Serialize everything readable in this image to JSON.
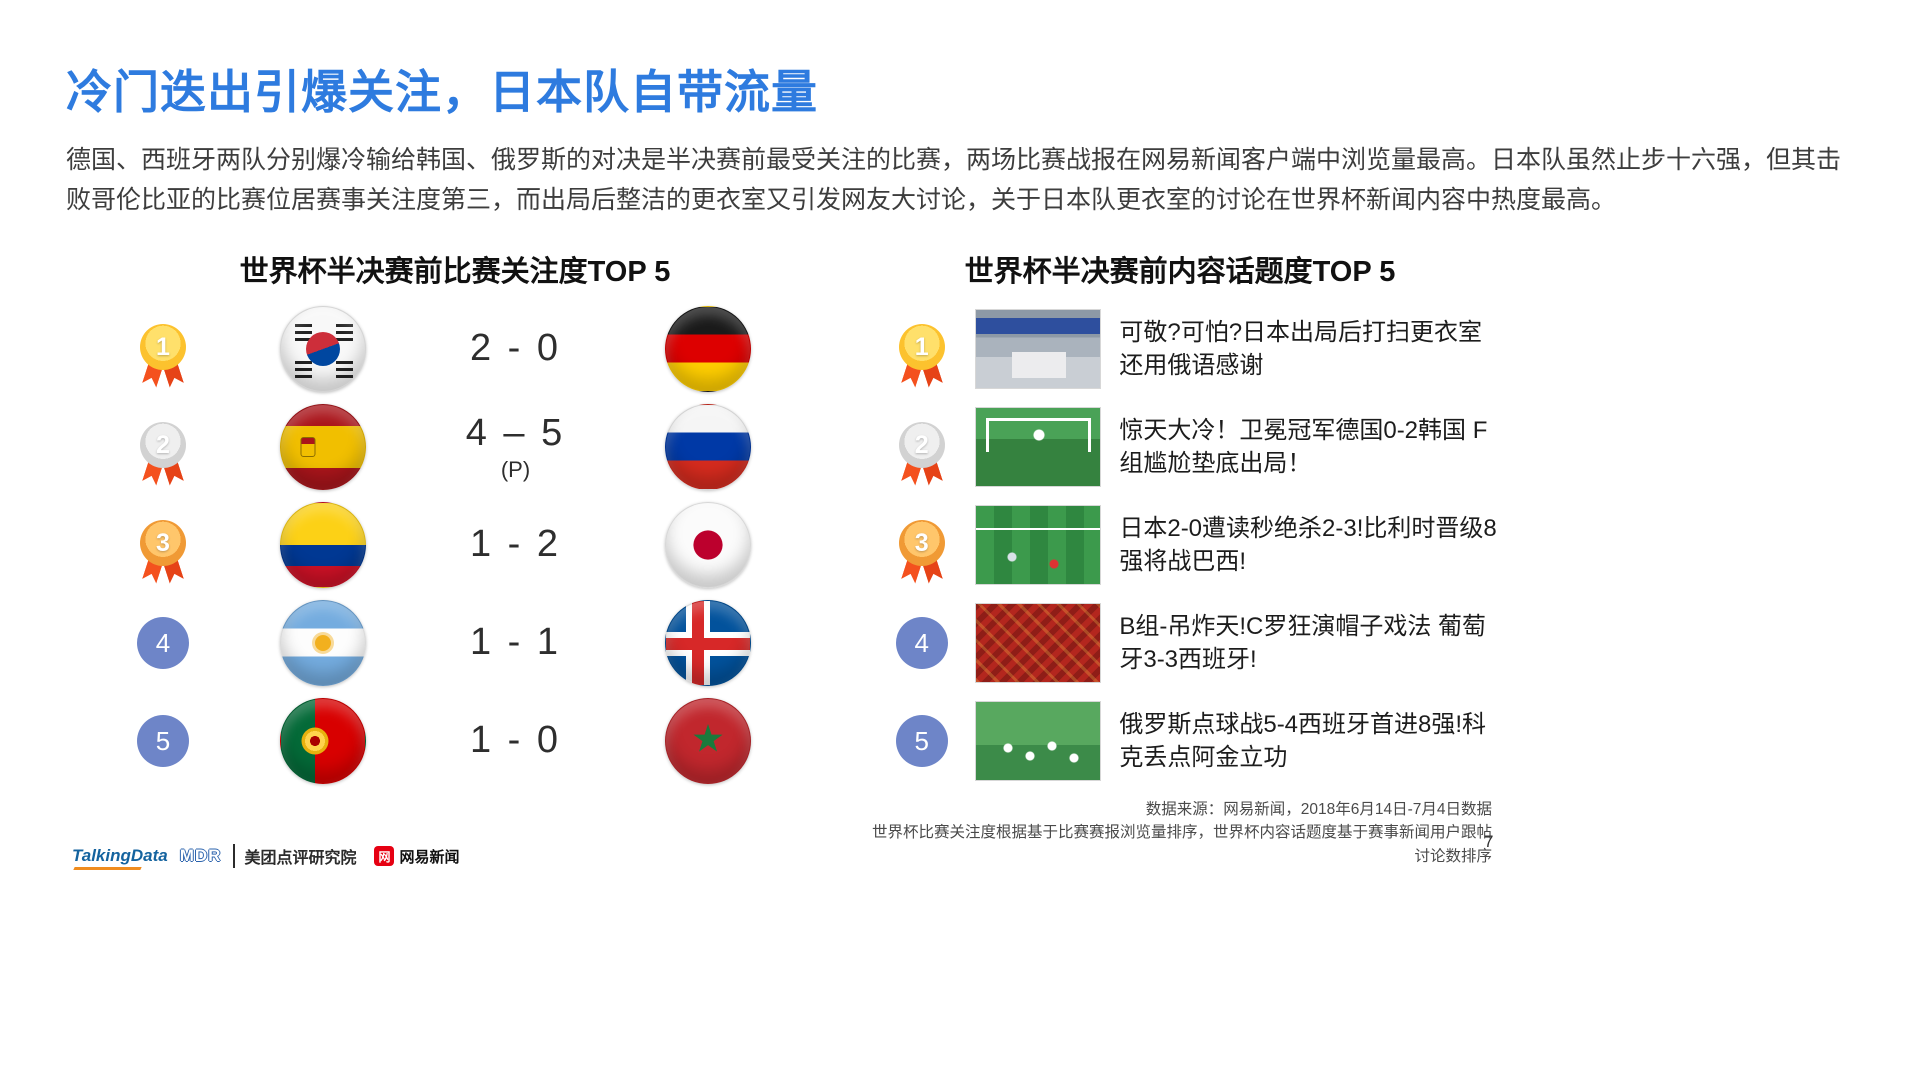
{
  "page": {
    "title": "冷门迭出引爆关注，日本队自带流量",
    "body": "德国、西班牙两队分别爆冷输给韩国、俄罗斯的对决是半决赛前最受关注的比赛，两场比赛战报在网易新闻客户端中浏览量最高。日本队虽然止步十六强，但其击败哥伦比亚的比赛位居赛事关注度第三，而出局后整洁的更衣室又引发网友大讨论，关于日本队更衣室的讨论在世界杯新闻内容中热度最高。",
    "page_number": "7"
  },
  "left_panel": {
    "title": "世界杯半决赛前比赛关注度TOP 5",
    "rows": [
      {
        "rank": "1",
        "team_left": "south-korea",
        "score": "2 - 0",
        "score_note": "",
        "team_right": "germany"
      },
      {
        "rank": "2",
        "team_left": "spain",
        "score": "4 – 5",
        "score_note": "(P)",
        "team_right": "russia"
      },
      {
        "rank": "3",
        "team_left": "colombia",
        "score": "1 - 2",
        "score_note": "",
        "team_right": "japan"
      },
      {
        "rank": "4",
        "team_left": "argentina",
        "score": "1 - 1",
        "score_note": "",
        "team_right": "iceland"
      },
      {
        "rank": "5",
        "team_left": "portugal",
        "score": "1 - 0",
        "score_note": "",
        "team_right": "morocco"
      }
    ]
  },
  "right_panel": {
    "title": "世界杯半决赛前内容话题度TOP 5",
    "rows": [
      {
        "rank": "1",
        "thumb": "locker-room",
        "headline": "可敬?可怕?日本出局后打扫更衣室 还用俄语感谢"
      },
      {
        "rank": "2",
        "thumb": "goal-upset",
        "headline": "惊天大冷！卫冕冠军德国0-2韩国 F组尴尬垫底出局！"
      },
      {
        "rank": "3",
        "thumb": "pitch-aerial",
        "headline": "日本2-0遭读秒绝杀2-3!比利时晋级8强将战巴西!"
      },
      {
        "rank": "4",
        "thumb": "red-fans",
        "headline": "B组-吊炸天!C罗狂演帽子戏法 葡萄牙3-3西班牙!"
      },
      {
        "rank": "5",
        "thumb": "celebration",
        "headline": "俄罗斯点球战5-4西班牙首进8强!科克丢点阿金立功"
      }
    ]
  },
  "footer": {
    "source_line1": "数据来源：网易新闻，2018年6月14日-7月4日数据",
    "source_line2": "世界杯比赛关注度根据基于比赛赛报浏览量排序，世界杯内容话题度基于赛事新闻用户跟帖讨论数排序",
    "logos": {
      "talkingdata": "TalkingData",
      "mdr": "MDR",
      "meituan": "美团点评研究院",
      "netease_icon": "网",
      "netease": "网易新闻"
    }
  },
  "colors": {
    "title_blue": "#2E7BDF",
    "medal_gold": "#FCC22E",
    "medal_silver": "#D2D2D2",
    "medal_bronze": "#F09A35",
    "ribbon_orange": "#F4511E",
    "rank_badge_blue": "#6E85C8"
  }
}
